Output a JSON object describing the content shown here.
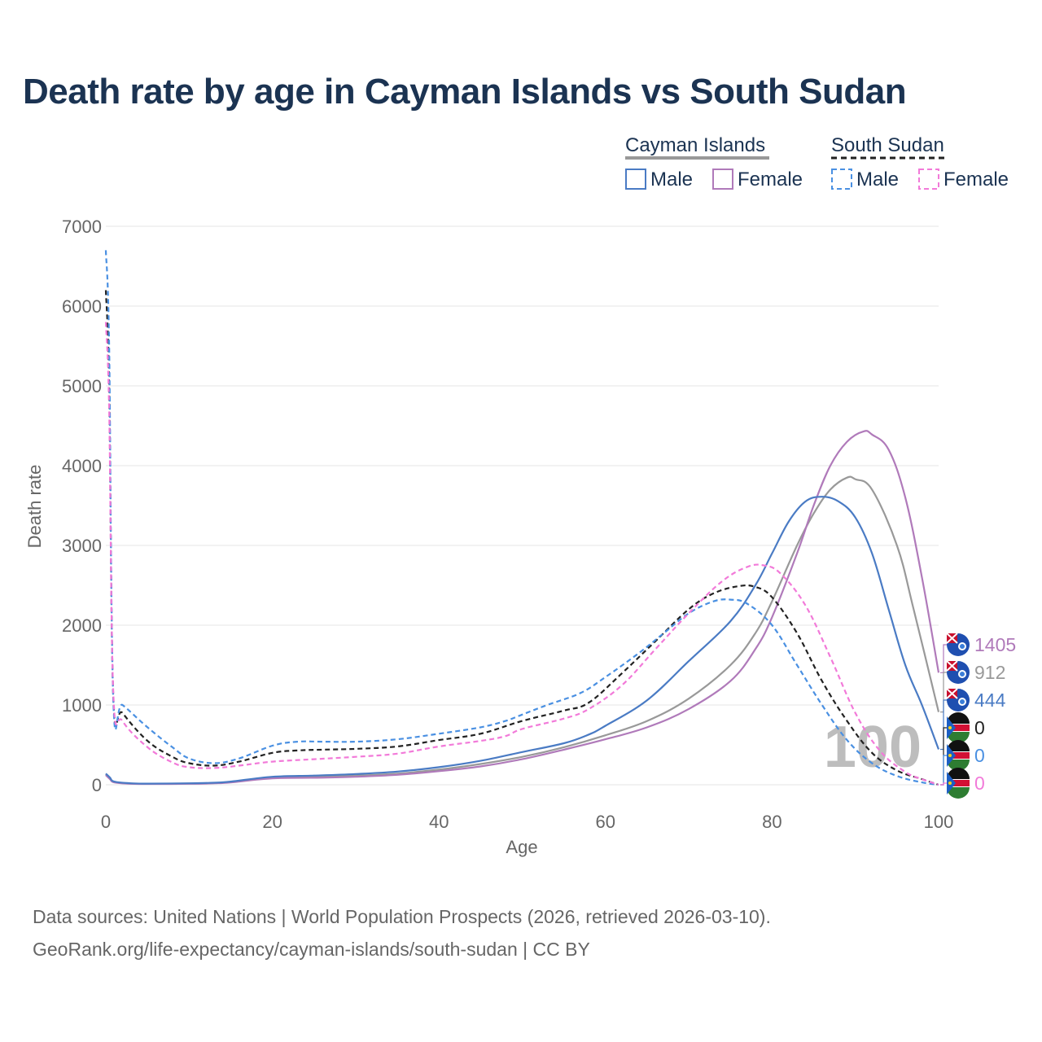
{
  "title": "Death rate by age in Cayman Islands vs South Sudan",
  "footer": {
    "line1": "Data sources: United Nations | World Population Prospects (2026, retrieved 2026-03-10).",
    "line2": "GeoRank.org/life-expectancy/cayman-islands/south-sudan | CC BY"
  },
  "legend": {
    "groups": [
      {
        "name": "Cayman Islands",
        "items": [
          {
            "label": "Male",
            "series": "ci_male"
          },
          {
            "label": "Female",
            "series": "ci_female"
          }
        ]
      },
      {
        "name": "South Sudan",
        "items": [
          {
            "label": "Male",
            "series": "ss_male"
          },
          {
            "label": "Female",
            "series": "ss_female"
          }
        ]
      }
    ]
  },
  "chart_data": {
    "type": "line",
    "title": "Death rate by age in Cayman Islands vs South Sudan",
    "xlabel": "Age",
    "ylabel": "Death rate",
    "xlim": [
      0,
      100
    ],
    "ylim": [
      0,
      7000
    ],
    "xticks": [
      0,
      20,
      40,
      60,
      80,
      100
    ],
    "yticks": [
      0,
      1000,
      2000,
      3000,
      4000,
      5000,
      6000,
      7000
    ],
    "grid": true,
    "legend_position": "top-right",
    "current_age": 100,
    "series": [
      {
        "id": "ci_total",
        "name": "Cayman Islands",
        "color": "#999999",
        "dash": "solid",
        "points": [
          [
            0,
            130
          ],
          [
            0.5,
            80
          ],
          [
            1,
            35
          ],
          [
            3,
            15
          ],
          [
            5,
            12
          ],
          [
            10,
            15
          ],
          [
            13,
            20
          ],
          [
            15,
            35
          ],
          [
            20,
            90
          ],
          [
            25,
            100
          ],
          [
            30,
            115
          ],
          [
            35,
            140
          ],
          [
            40,
            190
          ],
          [
            45,
            260
          ],
          [
            50,
            350
          ],
          [
            55,
            470
          ],
          [
            60,
            620
          ],
          [
            65,
            800
          ],
          [
            70,
            1080
          ],
          [
            75,
            1500
          ],
          [
            78,
            1900
          ],
          [
            80,
            2300
          ],
          [
            83,
            3000
          ],
          [
            85,
            3400
          ],
          [
            87,
            3700
          ],
          [
            89,
            3850
          ],
          [
            90,
            3830
          ],
          [
            92,
            3700
          ],
          [
            95,
            3000
          ],
          [
            97,
            2200
          ],
          [
            100,
            912
          ]
        ],
        "end_value": "912"
      },
      {
        "id": "ci_female",
        "name": "Cayman Islands Female",
        "color": "#b07aba",
        "dash": "solid",
        "points": [
          [
            0,
            120
          ],
          [
            0.5,
            70
          ],
          [
            1,
            30
          ],
          [
            3,
            12
          ],
          [
            5,
            10
          ],
          [
            10,
            12
          ],
          [
            13,
            18
          ],
          [
            15,
            30
          ],
          [
            20,
            80
          ],
          [
            25,
            88
          ],
          [
            30,
            100
          ],
          [
            35,
            125
          ],
          [
            40,
            170
          ],
          [
            45,
            230
          ],
          [
            50,
            320
          ],
          [
            55,
            440
          ],
          [
            60,
            570
          ],
          [
            65,
            720
          ],
          [
            70,
            950
          ],
          [
            75,
            1300
          ],
          [
            78,
            1700
          ],
          [
            80,
            2100
          ],
          [
            83,
            2900
          ],
          [
            85,
            3500
          ],
          [
            87,
            4000
          ],
          [
            89,
            4300
          ],
          [
            91,
            4430
          ],
          [
            92,
            4390
          ],
          [
            94,
            4200
          ],
          [
            96,
            3600
          ],
          [
            98,
            2600
          ],
          [
            100,
            1405
          ]
        ],
        "end_value": "1405"
      },
      {
        "id": "ci_male",
        "name": "Cayman Islands Male",
        "color": "#4a7bc4",
        "dash": "solid",
        "points": [
          [
            0,
            140
          ],
          [
            0.5,
            90
          ],
          [
            1,
            40
          ],
          [
            3,
            18
          ],
          [
            5,
            14
          ],
          [
            10,
            18
          ],
          [
            13,
            25
          ],
          [
            15,
            40
          ],
          [
            20,
            100
          ],
          [
            25,
            115
          ],
          [
            30,
            135
          ],
          [
            35,
            165
          ],
          [
            40,
            220
          ],
          [
            45,
            300
          ],
          [
            50,
            410
          ],
          [
            55,
            520
          ],
          [
            58,
            630
          ],
          [
            60,
            740
          ],
          [
            65,
            1060
          ],
          [
            70,
            1550
          ],
          [
            75,
            2050
          ],
          [
            78,
            2500
          ],
          [
            80,
            2900
          ],
          [
            82,
            3300
          ],
          [
            84,
            3550
          ],
          [
            86,
            3610
          ],
          [
            88,
            3550
          ],
          [
            90,
            3350
          ],
          [
            92,
            2900
          ],
          [
            94,
            2200
          ],
          [
            96,
            1500
          ],
          [
            98,
            1000
          ],
          [
            100,
            444
          ]
        ],
        "end_value": "444"
      },
      {
        "id": "ss_total",
        "name": "South Sudan",
        "color": "#222222",
        "dash": "dashed",
        "points": [
          [
            0,
            6200
          ],
          [
            0.4,
            5000
          ],
          [
            0.9,
            1100
          ],
          [
            2,
            900
          ],
          [
            5,
            550
          ],
          [
            8,
            350
          ],
          [
            10,
            270
          ],
          [
            13,
            240
          ],
          [
            16,
            290
          ],
          [
            20,
            400
          ],
          [
            23,
            430
          ],
          [
            26,
            440
          ],
          [
            30,
            450
          ],
          [
            35,
            480
          ],
          [
            40,
            560
          ],
          [
            45,
            640
          ],
          [
            50,
            800
          ],
          [
            55,
            930
          ],
          [
            58,
            1030
          ],
          [
            62,
            1400
          ],
          [
            66,
            1800
          ],
          [
            70,
            2200
          ],
          [
            73,
            2400
          ],
          [
            76,
            2490
          ],
          [
            78,
            2480
          ],
          [
            80,
            2350
          ],
          [
            83,
            1900
          ],
          [
            86,
            1300
          ],
          [
            89,
            800
          ],
          [
            92,
            400
          ],
          [
            95,
            180
          ],
          [
            98,
            70
          ],
          [
            100,
            0
          ]
        ],
        "end_value": "0"
      },
      {
        "id": "ss_male",
        "name": "South Sudan Male",
        "color": "#4a90e2",
        "dash": "dashed",
        "points": [
          [
            0,
            6700
          ],
          [
            0.4,
            5500
          ],
          [
            0.9,
            1050
          ],
          [
            2,
            1000
          ],
          [
            5,
            720
          ],
          [
            8,
            470
          ],
          [
            10,
            330
          ],
          [
            13,
            270
          ],
          [
            16,
            330
          ],
          [
            20,
            490
          ],
          [
            23,
            540
          ],
          [
            26,
            540
          ],
          [
            30,
            540
          ],
          [
            35,
            570
          ],
          [
            40,
            640
          ],
          [
            45,
            720
          ],
          [
            48,
            800
          ],
          [
            50,
            880
          ],
          [
            53,
            1000
          ],
          [
            57,
            1150
          ],
          [
            60,
            1350
          ],
          [
            64,
            1650
          ],
          [
            67,
            1900
          ],
          [
            70,
            2150
          ],
          [
            73,
            2300
          ],
          [
            75,
            2320
          ],
          [
            77,
            2270
          ],
          [
            80,
            2000
          ],
          [
            83,
            1500
          ],
          [
            86,
            1000
          ],
          [
            89,
            560
          ],
          [
            92,
            270
          ],
          [
            95,
            110
          ],
          [
            98,
            30
          ],
          [
            100,
            0
          ]
        ],
        "end_value": "0"
      },
      {
        "id": "ss_female",
        "name": "South Sudan Female",
        "color": "#f27ad9",
        "dash": "dashed",
        "points": [
          [
            0,
            5800
          ],
          [
            0.4,
            4700
          ],
          [
            0.9,
            1150
          ],
          [
            2,
            800
          ],
          [
            5,
            470
          ],
          [
            8,
            280
          ],
          [
            10,
            220
          ],
          [
            13,
            210
          ],
          [
            16,
            240
          ],
          [
            20,
            290
          ],
          [
            25,
            320
          ],
          [
            30,
            350
          ],
          [
            35,
            390
          ],
          [
            40,
            480
          ],
          [
            45,
            550
          ],
          [
            48,
            610
          ],
          [
            50,
            700
          ],
          [
            55,
            830
          ],
          [
            58,
            950
          ],
          [
            62,
            1250
          ],
          [
            66,
            1700
          ],
          [
            70,
            2150
          ],
          [
            74,
            2550
          ],
          [
            77,
            2730
          ],
          [
            79,
            2750
          ],
          [
            81,
            2650
          ],
          [
            84,
            2250
          ],
          [
            87,
            1600
          ],
          [
            90,
            900
          ],
          [
            93,
            420
          ],
          [
            96,
            160
          ],
          [
            98,
            70
          ],
          [
            100,
            0
          ]
        ],
        "end_value": "0"
      }
    ]
  }
}
